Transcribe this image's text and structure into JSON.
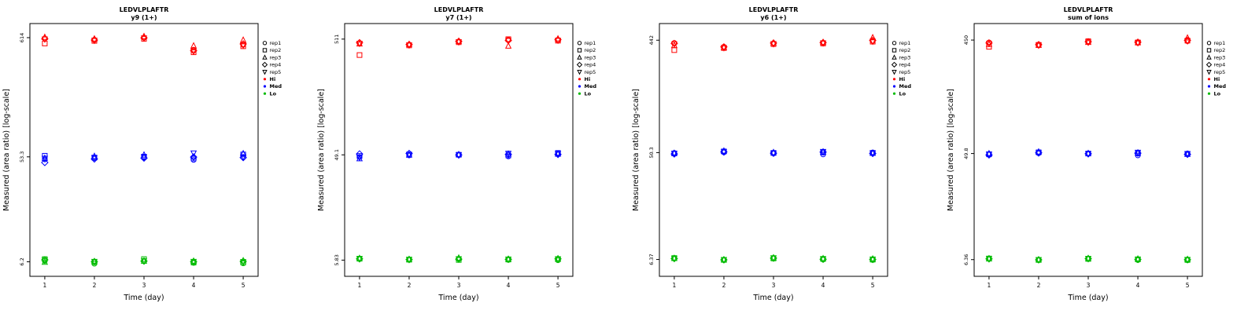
{
  "figure_title": "LEDVLPLAFTR",
  "colors": {
    "hi": "#FF0000",
    "med": "#0000FF",
    "lo": "#00BB00",
    "axis": "#000000"
  },
  "markers": [
    "circle",
    "square",
    "triangle-up",
    "diamond",
    "triangle-down"
  ],
  "rep_labels": [
    "rep1",
    "rep2",
    "rep3",
    "rep4",
    "rep5"
  ],
  "group_labels": [
    "Hi",
    "Med",
    "Lo"
  ],
  "chart_data": [
    {
      "type": "scatter",
      "title": "LEDVLPLAFTR",
      "subtitle": "y9 (1+)",
      "xlabel": "Time (day)",
      "ylabel": "Measured (area ratio) [log-scale]",
      "x_days": [
        1,
        2,
        3,
        4,
        5
      ],
      "xlim": [
        0.7,
        5.3
      ],
      "ylim": [
        4.6,
        820
      ],
      "y_scale": "log10",
      "y_ticks": [
        {
          "v": 614,
          "label": "614"
        },
        {
          "v": 53.3,
          "label": "53.3"
        },
        {
          "v": 6.2,
          "label": "6.2"
        }
      ],
      "groups": [
        {
          "name": "Hi",
          "color": "#FF0000",
          "reps": [
            [
              605,
              590,
              615,
              480,
              530
            ],
            [
              545,
              575,
              600,
              455,
              515
            ],
            [
              620,
              600,
              630,
              520,
              585
            ],
            [
              600,
              585,
              612,
              470,
              540
            ],
            [
              595,
              580,
              608,
              465,
              525
            ]
          ]
        },
        {
          "name": "Med",
          "color": "#0000FF",
          "reps": [
            [
              50.5,
              52,
              52.5,
              50,
              52.8
            ],
            [
              54.5,
              52.5,
              53.5,
              51.5,
              56
            ],
            [
              52,
              54,
              55.5,
              53.5,
              57
            ],
            [
              47.5,
              51,
              52,
              53,
              52.5
            ],
            [
              51.5,
              52.2,
              53,
              57.5,
              53.2
            ]
          ]
        },
        {
          "name": "Lo",
          "color": "#00BB00",
          "reps": [
            [
              6.3,
              5.95,
              6.25,
              6.05,
              6.0
            ],
            [
              6.55,
              6.15,
              6.55,
              6.1,
              6.1
            ],
            [
              6.15,
              6.25,
              6.3,
              6.3,
              6.35
            ],
            [
              6.45,
              6.2,
              6.28,
              6.2,
              6.25
            ],
            [
              6.4,
              6.22,
              6.32,
              6.22,
              6.2
            ]
          ]
        }
      ]
    },
    {
      "type": "scatter",
      "title": "LEDVLPLAFTR",
      "subtitle": "y7 (1+)",
      "xlabel": "Time (day)",
      "ylabel": "Measured (area ratio) [log-scale]",
      "x_days": [
        1,
        2,
        3,
        4,
        5
      ],
      "xlim": [
        0.7,
        5.3
      ],
      "ylim": [
        4.2,
        700
      ],
      "y_scale": "log10",
      "y_ticks": [
        {
          "v": 511,
          "label": "511"
        },
        {
          "v": 49.1,
          "label": "49.1"
        },
        {
          "v": 5.83,
          "label": "5.83"
        }
      ],
      "groups": [
        {
          "name": "Hi",
          "color": "#FF0000",
          "reps": [
            [
              470,
              455,
              485,
              505,
              500
            ],
            [
              370,
              450,
              480,
              510,
              495
            ],
            [
              465,
              460,
              490,
              445,
              515
            ],
            [
              475,
              458,
              488,
              498,
              505
            ],
            [
              468,
              452,
              482,
              495,
              498
            ]
          ]
        },
        {
          "name": "Med",
          "color": "#0000FF",
          "reps": [
            [
              47,
              48.5,
              49,
              47.5,
              50.5
            ],
            [
              48,
              49.5,
              49.2,
              48.5,
              51
            ],
            [
              45.5,
              49,
              49.5,
              50,
              50
            ],
            [
              50,
              50.5,
              49,
              49.5,
              49.5
            ],
            [
              46.5,
              49.2,
              48.8,
              50.5,
              50.2
            ]
          ]
        },
        {
          "name": "Lo",
          "color": "#00BB00",
          "reps": [
            [
              5.95,
              5.9,
              6.0,
              5.85,
              5.8
            ],
            [
              6.0,
              5.88,
              5.85,
              5.9,
              5.95
            ],
            [
              6.05,
              5.92,
              6.1,
              5.95,
              6.0
            ],
            [
              5.98,
              5.9,
              5.95,
              5.92,
              5.98
            ],
            [
              6.02,
              5.91,
              5.97,
              5.94,
              5.96
            ]
          ]
        }
      ]
    },
    {
      "type": "scatter",
      "title": "LEDVLPLAFTR",
      "subtitle": "y6 (1+)",
      "xlabel": "Time (day)",
      "ylabel": "Measured (area ratio) [log-scale]",
      "x_days": [
        1,
        2,
        3,
        4,
        5
      ],
      "xlim": [
        0.7,
        5.3
      ],
      "ylim": [
        4.6,
        610
      ],
      "y_scale": "log10",
      "y_ticks": [
        {
          "v": 442,
          "label": "442"
        },
        {
          "v": 50.3,
          "label": "50.3"
        },
        {
          "v": 6.37,
          "label": "6.37"
        }
      ],
      "groups": [
        {
          "name": "Hi",
          "color": "#FF0000",
          "reps": [
            [
              420,
              390,
              415,
              420,
              435
            ],
            [
              365,
              380,
              410,
              415,
              430
            ],
            [
              400,
              385,
              420,
              425,
              465
            ],
            [
              415,
              388,
              418,
              422,
              440
            ],
            [
              410,
              382,
              412,
              418,
              432
            ]
          ]
        },
        {
          "name": "Med",
          "color": "#0000FF",
          "reps": [
            [
              50,
              50.5,
              49.5,
              48.5,
              50.5
            ],
            [
              49.5,
              51.5,
              50,
              50.5,
              50
            ],
            [
              49.8,
              52,
              50.5,
              51,
              49.8
            ],
            [
              49,
              51,
              49.8,
              50.8,
              49.5
            ],
            [
              49.6,
              50.8,
              49.6,
              51.2,
              49.9
            ]
          ]
        },
        {
          "name": "Lo",
          "color": "#00BB00",
          "reps": [
            [
              6.5,
              6.3,
              6.55,
              6.35,
              6.3
            ],
            [
              6.55,
              6.32,
              6.5,
              6.45,
              6.35
            ],
            [
              6.52,
              6.35,
              6.6,
              6.5,
              6.45
            ],
            [
              6.48,
              6.33,
              6.53,
              6.4,
              6.38
            ],
            [
              6.5,
              6.34,
              6.56,
              6.42,
              6.4
            ]
          ]
        }
      ]
    },
    {
      "type": "scatter",
      "title": "LEDVLPLAFTR",
      "subtitle": "sum of ions",
      "xlabel": "Time (day)",
      "ylabel": "Measured (area ratio) [log-scale]",
      "x_days": [
        1,
        2,
        3,
        4,
        5
      ],
      "xlim": [
        0.7,
        5.3
      ],
      "ylim": [
        4.6,
        620
      ],
      "y_scale": "log10",
      "y_ticks": [
        {
          "v": 450,
          "label": "450"
        },
        {
          "v": 49.8,
          "label": "49.8"
        },
        {
          "v": 6.36,
          "label": "6.36"
        }
      ],
      "groups": [
        {
          "name": "Hi",
          "color": "#FF0000",
          "reps": [
            [
              430,
              405,
              435,
              425,
              440
            ],
            [
              395,
              410,
              440,
              430,
              445
            ],
            [
              415,
              408,
              432,
              428,
              470
            ],
            [
              425,
              412,
              436,
              432,
              448
            ],
            [
              420,
              406,
              430,
              426,
              442
            ]
          ]
        },
        {
          "name": "Med",
          "color": "#0000FF",
          "reps": [
            [
              49.5,
              50,
              49.5,
              48,
              50
            ],
            [
              49,
              51,
              49.8,
              50,
              49.5
            ],
            [
              49.8,
              51.5,
              50,
              50.5,
              49.2
            ],
            [
              48.5,
              50.5,
              49.6,
              50.2,
              49
            ],
            [
              49.2,
              50.2,
              49.4,
              50.8,
              49.6
            ]
          ]
        },
        {
          "name": "Lo",
          "color": "#00BB00",
          "reps": [
            [
              6.45,
              6.3,
              6.5,
              6.3,
              6.28
            ],
            [
              6.5,
              6.32,
              6.45,
              6.4,
              6.32
            ],
            [
              6.48,
              6.35,
              6.52,
              6.45,
              6.4
            ],
            [
              6.46,
              6.33,
              6.48,
              6.38,
              6.35
            ],
            [
              6.47,
              6.34,
              6.49,
              6.4,
              6.36
            ]
          ]
        }
      ]
    }
  ]
}
